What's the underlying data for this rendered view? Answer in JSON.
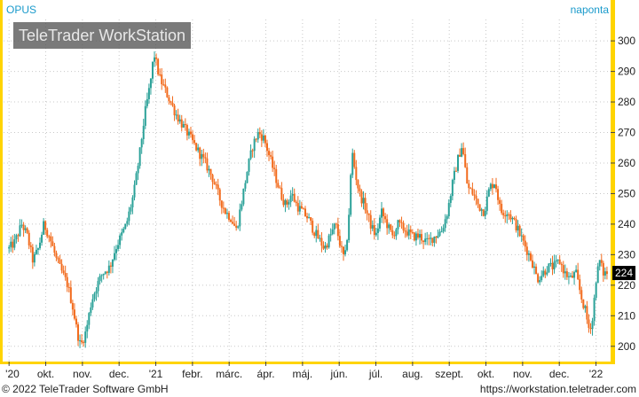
{
  "chart_data": {
    "type": "candlestick",
    "symbol": "OPUS",
    "interval": "naponta",
    "watermark": "TeleTrader WorkStation",
    "last_price_label": "224",
    "ylim": [
      195,
      307
    ],
    "yticks": [
      200,
      210,
      220,
      230,
      240,
      250,
      260,
      270,
      280,
      290,
      300
    ],
    "xticks": [
      {
        "t": 0.0,
        "label": "'20"
      },
      {
        "t": 1.0,
        "label": "okt."
      },
      {
        "t": 2.0,
        "label": "nov."
      },
      {
        "t": 3.0,
        "label": "dec."
      },
      {
        "t": 4.0,
        "label": "'21"
      },
      {
        "t": 5.0,
        "label": "febr."
      },
      {
        "t": 6.0,
        "label": "márc."
      },
      {
        "t": 7.0,
        "label": "ápr."
      },
      {
        "t": 8.0,
        "label": "máj."
      },
      {
        "t": 9.0,
        "label": "jún."
      },
      {
        "t": 10.0,
        "label": "júl."
      },
      {
        "t": 11.0,
        "label": "aug."
      },
      {
        "t": 12.0,
        "label": "szept."
      },
      {
        "t": 13.0,
        "label": "okt."
      },
      {
        "t": 14.0,
        "label": "nov."
      },
      {
        "t": 15.0,
        "label": "dec."
      },
      {
        "t": 16.0,
        "label": "'22"
      }
    ],
    "xlim": [
      -0.15,
      16.35
    ],
    "path": [
      [
        0.0,
        232
      ],
      [
        0.15,
        234
      ],
      [
        0.35,
        240
      ],
      [
        0.5,
        236
      ],
      [
        0.65,
        228
      ],
      [
        0.8,
        232
      ],
      [
        0.95,
        240
      ],
      [
        1.1,
        236
      ],
      [
        1.3,
        228
      ],
      [
        1.45,
        224
      ],
      [
        1.6,
        220
      ],
      [
        1.75,
        212
      ],
      [
        1.85,
        205
      ],
      [
        1.95,
        200
      ],
      [
        2.1,
        205
      ],
      [
        2.25,
        215
      ],
      [
        2.4,
        220
      ],
      [
        2.55,
        224
      ],
      [
        2.75,
        226
      ],
      [
        2.9,
        232
      ],
      [
        3.05,
        236
      ],
      [
        3.2,
        240
      ],
      [
        3.4,
        250
      ],
      [
        3.55,
        262
      ],
      [
        3.7,
        276
      ],
      [
        3.85,
        286
      ],
      [
        3.95,
        296
      ],
      [
        4.1,
        288
      ],
      [
        4.25,
        284
      ],
      [
        4.4,
        280
      ],
      [
        4.55,
        276
      ],
      [
        4.75,
        272
      ],
      [
        4.95,
        268
      ],
      [
        5.15,
        264
      ],
      [
        5.35,
        260
      ],
      [
        5.55,
        255
      ],
      [
        5.75,
        248
      ],
      [
        5.9,
        244
      ],
      [
        6.05,
        242
      ],
      [
        6.2,
        238
      ],
      [
        6.35,
        248
      ],
      [
        6.5,
        258
      ],
      [
        6.65,
        266
      ],
      [
        6.8,
        270
      ],
      [
        6.95,
        268
      ],
      [
        7.1,
        262
      ],
      [
        7.25,
        256
      ],
      [
        7.4,
        250
      ],
      [
        7.55,
        246
      ],
      [
        7.7,
        250
      ],
      [
        7.85,
        246
      ],
      [
        8.0,
        244
      ],
      [
        8.15,
        242
      ],
      [
        8.3,
        238
      ],
      [
        8.45,
        235
      ],
      [
        8.6,
        232
      ],
      [
        8.75,
        236
      ],
      [
        8.9,
        240
      ],
      [
        9.05,
        232
      ],
      [
        9.15,
        228
      ],
      [
        9.25,
        240
      ],
      [
        9.35,
        264
      ],
      [
        9.45,
        256
      ],
      [
        9.55,
        250
      ],
      [
        9.7,
        246
      ],
      [
        9.85,
        240
      ],
      [
        10.0,
        236
      ],
      [
        10.15,
        244
      ],
      [
        10.3,
        240
      ],
      [
        10.45,
        236
      ],
      [
        10.6,
        240
      ],
      [
        10.8,
        238
      ],
      [
        11.0,
        236
      ],
      [
        11.2,
        236
      ],
      [
        11.4,
        234
      ],
      [
        11.6,
        236
      ],
      [
        11.8,
        238
      ],
      [
        11.95,
        244
      ],
      [
        12.1,
        254
      ],
      [
        12.25,
        262
      ],
      [
        12.35,
        266
      ],
      [
        12.5,
        252
      ],
      [
        12.65,
        250
      ],
      [
        12.8,
        246
      ],
      [
        12.95,
        244
      ],
      [
        13.1,
        252
      ],
      [
        13.25,
        254
      ],
      [
        13.4,
        244
      ],
      [
        13.6,
        244
      ],
      [
        13.8,
        240
      ],
      [
        13.95,
        236
      ],
      [
        14.1,
        232
      ],
      [
        14.25,
        228
      ],
      [
        14.4,
        222
      ],
      [
        14.55,
        224
      ],
      [
        14.7,
        226
      ],
      [
        14.85,
        226
      ],
      [
        15.0,
        228
      ],
      [
        15.15,
        224
      ],
      [
        15.3,
        222
      ],
      [
        15.45,
        224
      ],
      [
        15.6,
        216
      ],
      [
        15.7,
        212
      ],
      [
        15.8,
        206
      ],
      [
        15.9,
        208
      ],
      [
        16.0,
        222
      ],
      [
        16.1,
        228
      ],
      [
        16.2,
        224
      ],
      [
        16.3,
        224
      ]
    ]
  },
  "footer": {
    "copyright": "© 2022 TeleTrader Software GmbH",
    "url": "https://workstation.teletrader.com"
  },
  "colors": {
    "up": "#2aa198",
    "down": "#f26b1d",
    "axis_bar": "#ffd400",
    "grid": "#c8c8c8",
    "title": "#1a9acb",
    "watermark_bg": "#555555",
    "label_bg": "#000000"
  }
}
